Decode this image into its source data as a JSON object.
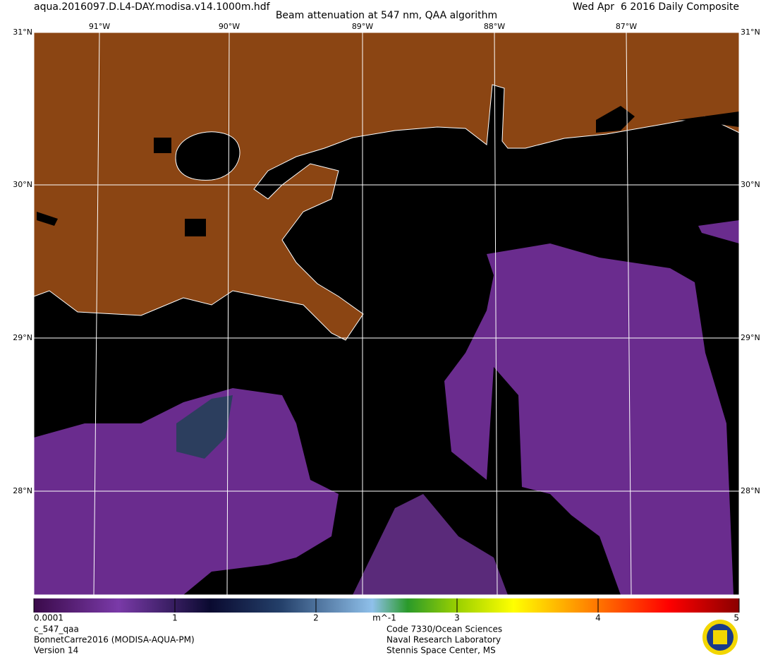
{
  "header": {
    "filename": "aqua.2016097.D.L4-DAY.modisa.v14.1000m.hdf",
    "title": "Beam attenuation at 547 nm, QAA algorithm",
    "date": "Wed Apr  6 2016 Daily Composite"
  },
  "map": {
    "longitudes": [
      "91°W",
      "90°W",
      "89°W",
      "88°W",
      "87°W"
    ],
    "latitudes": [
      "31°N",
      "30°N",
      "29°N",
      "28°N"
    ]
  },
  "colorbar": {
    "range": [
      0.0001,
      5
    ],
    "ticks": [
      0.0001,
      1,
      2,
      3,
      4,
      5
    ],
    "unit": "m^-1"
  },
  "footer": {
    "left": [
      "c_547_qaa",
      "BonnetCarre2016 (MODISA-AQUA-PM)",
      "Version 14"
    ],
    "right": [
      "Code 7330/Ocean Sciences",
      "Naval Research Laboratory",
      "Stennis Space Center, MS"
    ]
  }
}
